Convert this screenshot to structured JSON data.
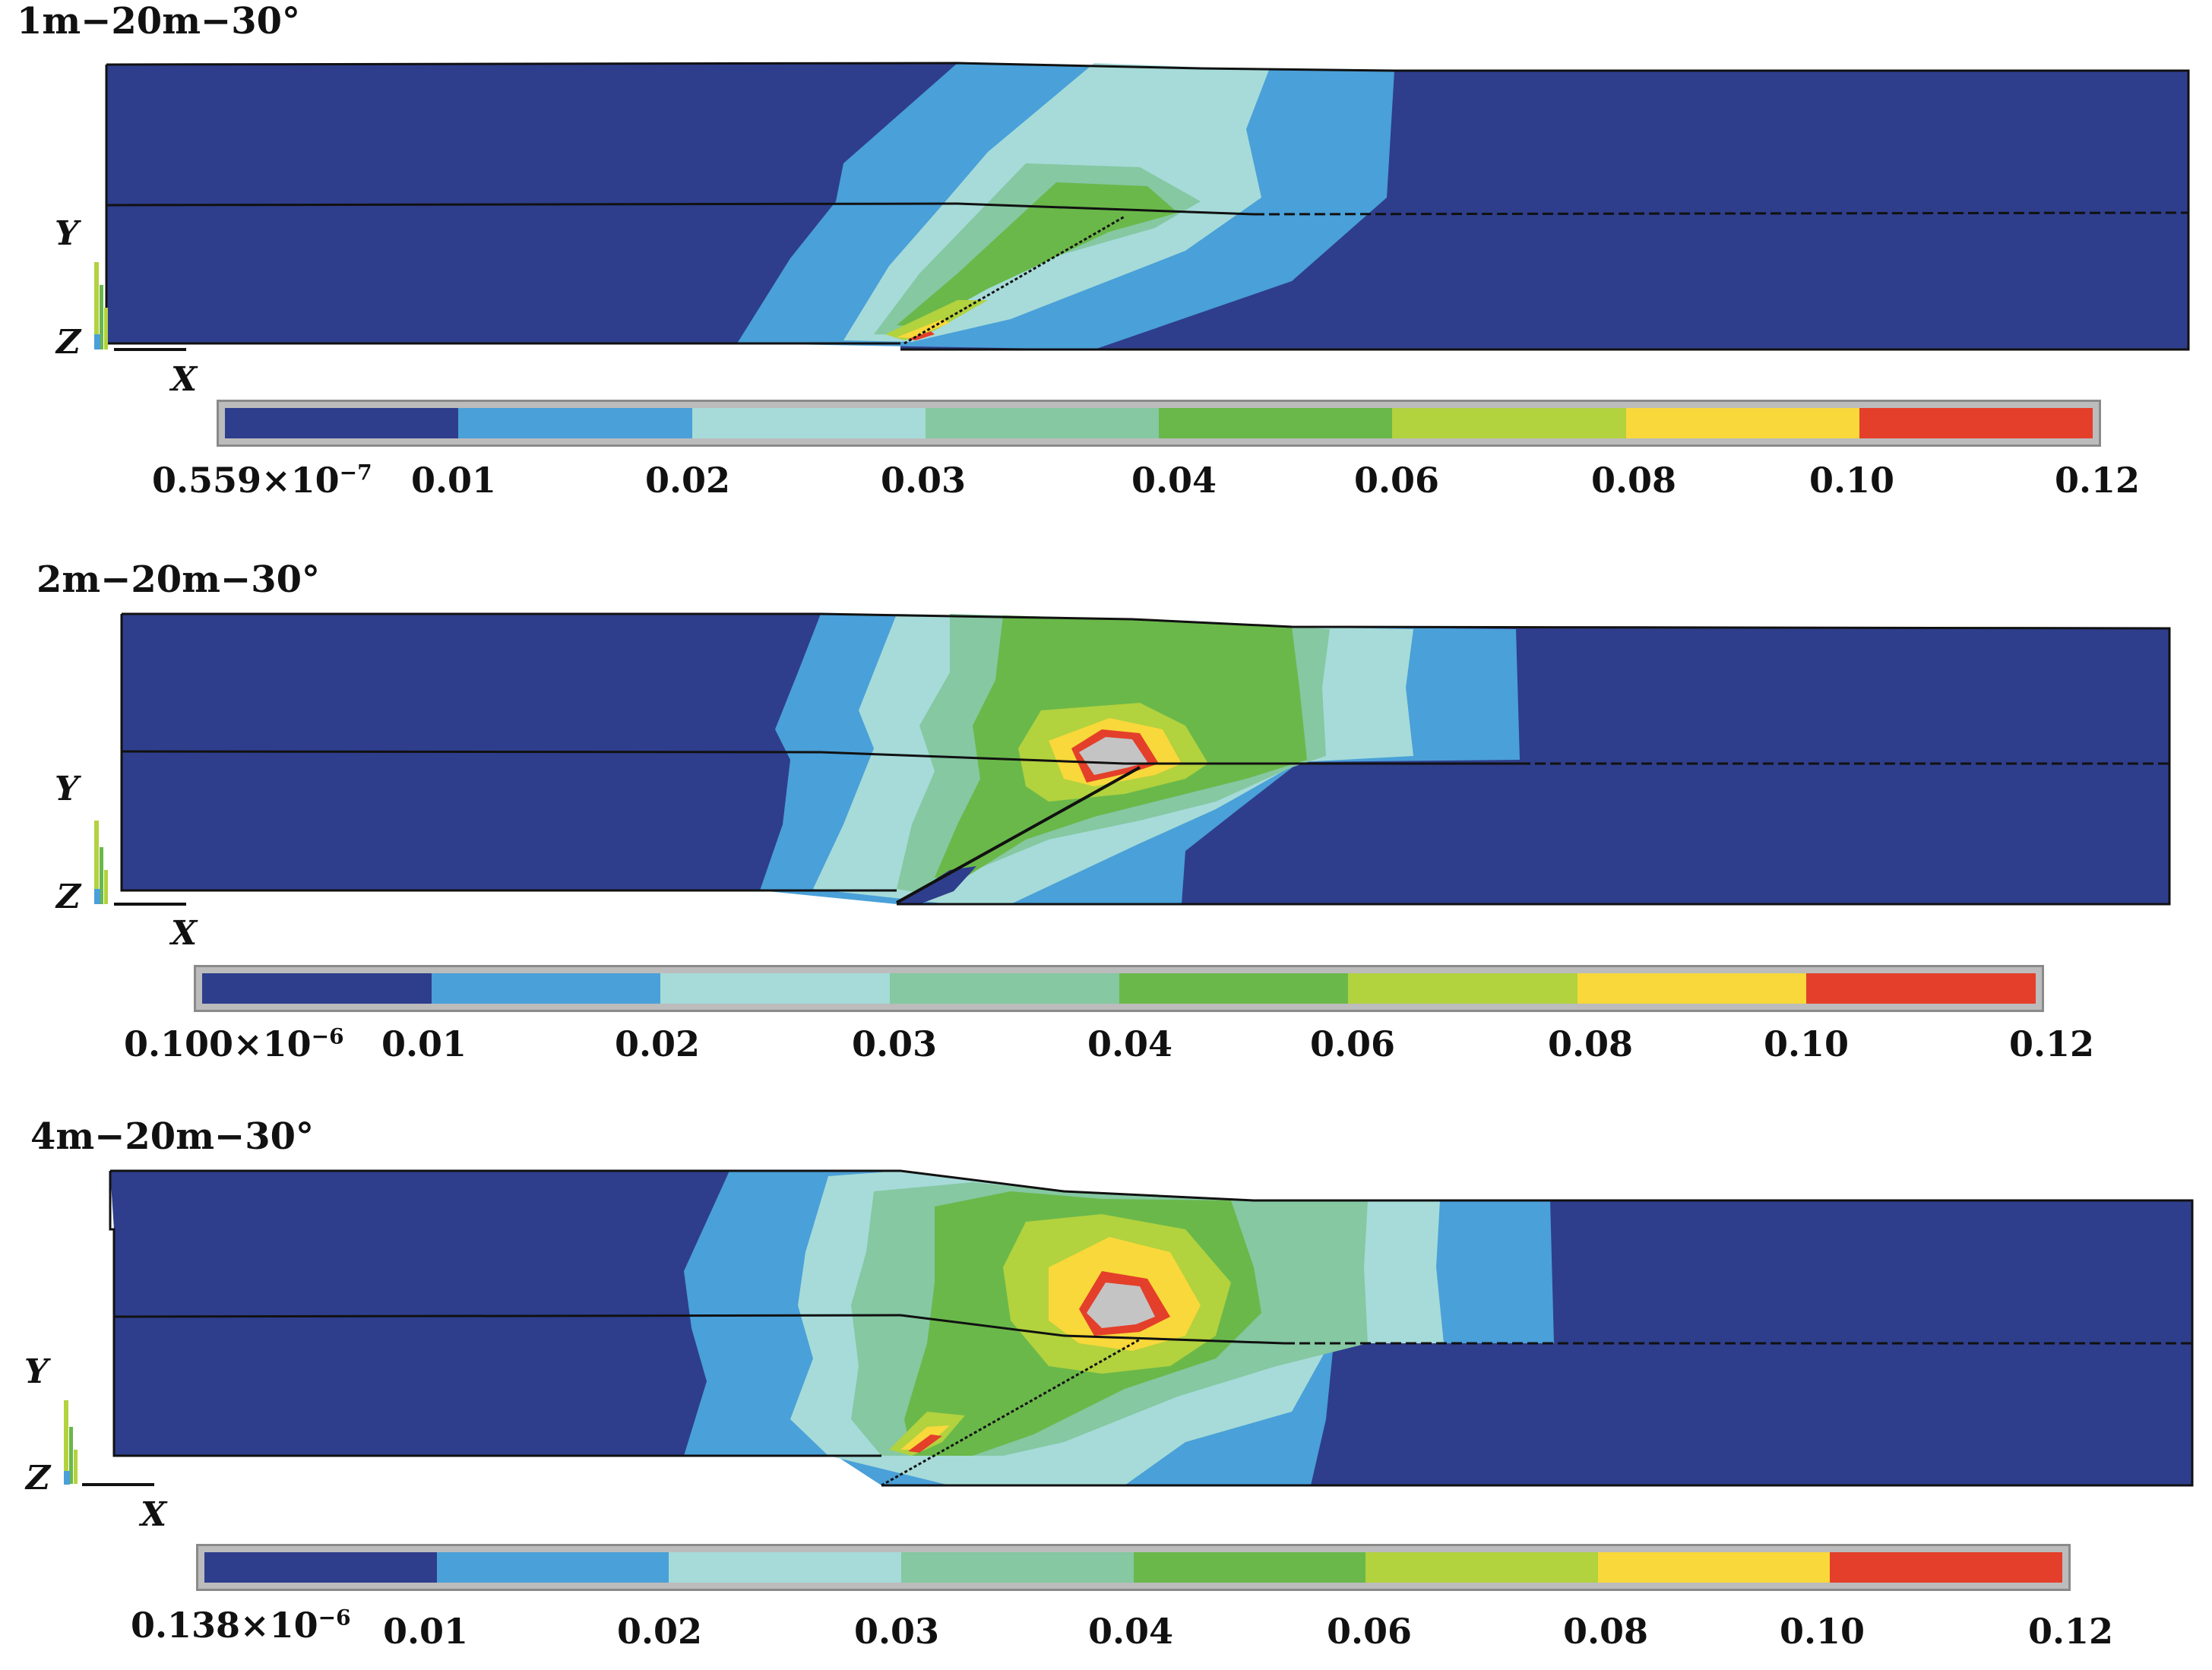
{
  "panels": [
    {
      "title": "1m−20m−30°",
      "min_label": "0.559×10",
      "min_exp": "−7"
    },
    {
      "title": "2m−20m−30°",
      "min_label": "0.100×10",
      "min_exp": "−6"
    },
    {
      "title": "4m−20m−30°",
      "min_label": "0.138×10",
      "min_exp": "−6"
    }
  ],
  "legend": {
    "ticks": [
      "0.01",
      "0.02",
      "0.03",
      "0.04",
      "0.06",
      "0.08",
      "0.10",
      "0.12"
    ],
    "colors": [
      "#2e3e8c",
      "#4aa0d8",
      "#a6dbd9",
      "#85c8a2",
      "#6ab84a",
      "#b2d23e",
      "#f8d83a",
      "#e43f2a"
    ]
  },
  "axes": {
    "y": "Y",
    "z": "Z",
    "x": "X"
  },
  "colors": {
    "background": "#ffffff",
    "deep": "#2e3e8c",
    "crack": "#c4c4c4",
    "outline": "#111111"
  }
}
